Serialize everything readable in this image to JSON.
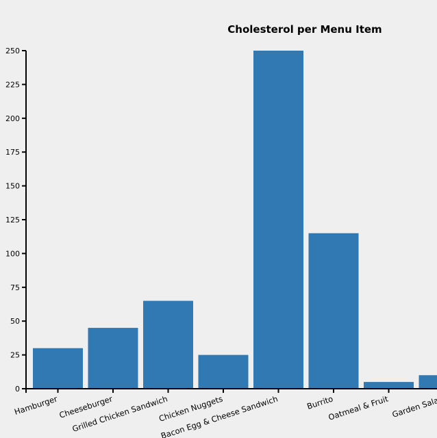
{
  "chart_data": {
    "type": "bar",
    "title": "Cholesterol per Menu Item",
    "xlabel": "",
    "ylabel": "",
    "categories": [
      "Hamburger",
      "Cheeseburger",
      "Grilled Chicken Sandwich",
      "Chicken Nuggets",
      "Bacon Egg & Cheese Sandwich",
      "Burrito",
      "Oatmeal & Fruit",
      "Garden Salad"
    ],
    "values": [
      30,
      45,
      65,
      25,
      250,
      115,
      5,
      10
    ],
    "ylim": [
      0,
      250
    ],
    "yticks": [
      0,
      25,
      50,
      75,
      100,
      125,
      150,
      175,
      200,
      225,
      250
    ],
    "bar_color": "#3179b3",
    "grid": false,
    "legend": "none"
  }
}
